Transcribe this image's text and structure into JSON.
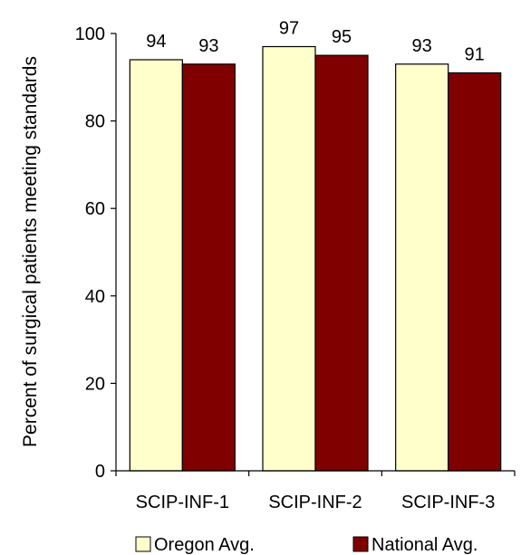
{
  "chart_data": {
    "type": "bar",
    "title": "",
    "xlabel": "",
    "ylabel": "Percent of surgical patients meeting standards",
    "categories": [
      "SCIP-INF-1",
      "SCIP-INF-2",
      "SCIP-INF-3"
    ],
    "series": [
      {
        "name": "Oregon Avg.",
        "values": [
          94,
          97,
          93
        ],
        "color": "#FFFFCC"
      },
      {
        "name": "National Avg.",
        "values": [
          93,
          95,
          91
        ],
        "color": "#800000"
      }
    ],
    "ylim": [
      0,
      100
    ],
    "yticks": [
      0,
      20,
      40,
      60,
      80,
      100
    ],
    "grid": false,
    "legend_position": "bottom",
    "data_labels": true
  }
}
